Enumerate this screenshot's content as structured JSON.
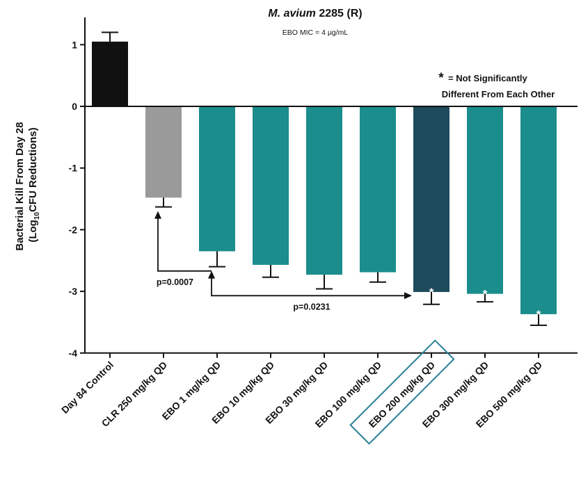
{
  "chart_data": {
    "type": "bar",
    "title_italic": "M. avium",
    "title_rest": " 2285 (R)",
    "subtitle": "EBO MIC = 4 µg/mL",
    "ylabel_line1": "Bacterial Kill From Day 28",
    "ylabel_line2_pre": "(Log",
    "ylabel_line2_sub": "10",
    "ylabel_line2_post": "CFU Reductions)",
    "ylim": [
      -4,
      1.5
    ],
    "yticks": [
      "1",
      "0",
      "-1",
      "-2",
      "-3",
      "-4"
    ],
    "categories": [
      "Day 84 Control",
      "CLR 250 mg/kg QD",
      "EBO 1 mg/kg QD",
      "EBO 10 mg/kg QD",
      "EBO 30 mg/kg QD",
      "EBO 100 mg/kg QD",
      "EBO 200 mg/kg QD",
      "EBO 300 mg/kg QD",
      "EBO 500 mg/kg QD"
    ],
    "values": [
      1.05,
      -1.48,
      -2.35,
      -2.57,
      -2.73,
      -2.69,
      -3.01,
      -3.04,
      -3.37
    ],
    "errors": [
      0.15,
      0.15,
      0.25,
      0.2,
      0.23,
      0.16,
      0.2,
      0.13,
      0.18
    ],
    "colors": [
      "#111111",
      "#9a9a9a",
      "#1b8d8d",
      "#1b8d8d",
      "#1b8d8d",
      "#1b8d8d",
      "#1d4b5b",
      "#1b8d8d",
      "#1b8d8d"
    ],
    "stars": [
      false,
      false,
      false,
      false,
      false,
      false,
      true,
      true,
      true
    ],
    "star_symbol": "*",
    "highlighted_category": "EBO 200 mg/kg QD",
    "legend_star": "*",
    "legend_line1": " = Not Significantly",
    "legend_line2": "Different From Each Other",
    "annotations": [
      {
        "label": "p=0.0007",
        "from": "CLR 250 mg/kg QD",
        "to": "EBO 1 mg/kg QD"
      },
      {
        "label": "p=0.0231",
        "from": "EBO 1 mg/kg QD",
        "to": "EBO 200 mg/kg QD"
      }
    ],
    "colors_meta": {
      "axis": "#111111",
      "highlight_box": "#2a7f96",
      "star": "#ffffff"
    }
  }
}
